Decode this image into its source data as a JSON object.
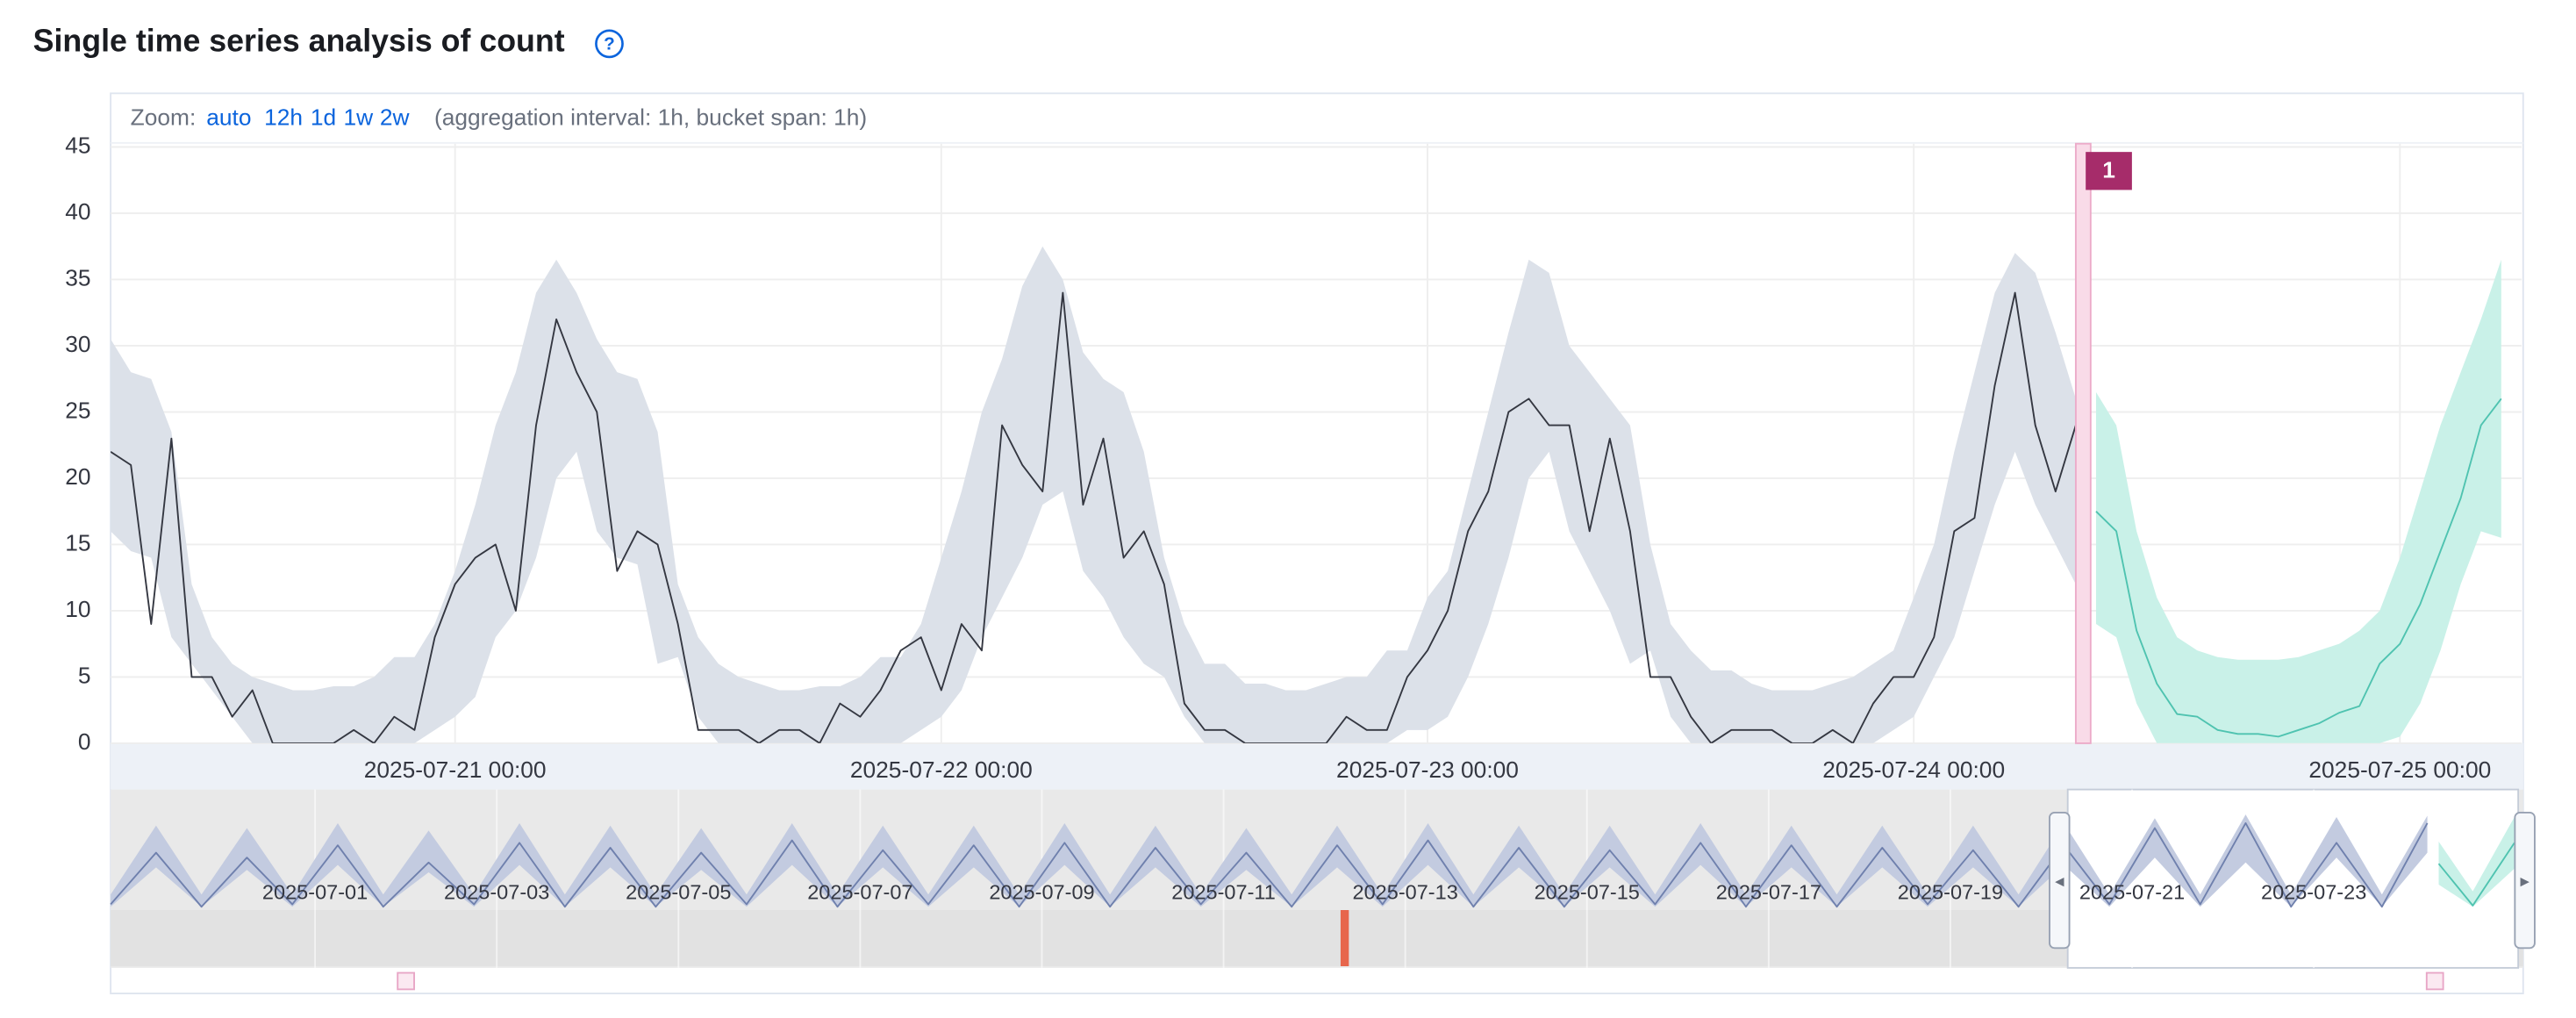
{
  "header": {
    "title": "Single time series analysis of count",
    "help": "?"
  },
  "zoom": {
    "label": "Zoom:",
    "options": [
      "auto",
      "12h",
      "1d",
      "1w",
      "2w"
    ],
    "info": "(aggregation interval: 1h, bucket span: 1h)"
  },
  "chart_data": [
    {
      "type": "line",
      "xlim": [
        "2025-07-20 07:00",
        "2025-07-25 06:00"
      ],
      "xticks": [
        "2025-07-21 00:00",
        "2025-07-22 00:00",
        "2025-07-23 00:00",
        "2025-07-24 00:00",
        "2025-07-25 00:00"
      ],
      "ylim": [
        0,
        45
      ],
      "yticks": [
        0,
        5,
        10,
        15,
        20,
        25,
        30,
        35,
        40,
        45
      ],
      "grid": true,
      "series": [
        {
          "color": "#343741",
          "band_color": "#dce1e9",
          "x": [
            "2025-07-20 07:00",
            "2025-07-20 08:00",
            "2025-07-20 09:00",
            "2025-07-20 10:00",
            "2025-07-20 11:00",
            "2025-07-20 12:00",
            "2025-07-20 13:00",
            "2025-07-20 14:00",
            "2025-07-20 15:00",
            "2025-07-20 16:00",
            "2025-07-20 17:00",
            "2025-07-20 18:00",
            "2025-07-20 19:00",
            "2025-07-20 20:00",
            "2025-07-20 21:00",
            "2025-07-20 22:00",
            "2025-07-20 23:00",
            "2025-07-21 00:00",
            "2025-07-21 01:00",
            "2025-07-21 02:00",
            "2025-07-21 03:00",
            "2025-07-21 04:00",
            "2025-07-21 05:00",
            "2025-07-21 06:00",
            "2025-07-21 07:00",
            "2025-07-21 08:00",
            "2025-07-21 09:00",
            "2025-07-21 10:00",
            "2025-07-21 11:00",
            "2025-07-21 12:00",
            "2025-07-21 13:00",
            "2025-07-21 14:00",
            "2025-07-21 15:00",
            "2025-07-21 16:00",
            "2025-07-21 17:00",
            "2025-07-21 18:00",
            "2025-07-21 19:00",
            "2025-07-21 20:00",
            "2025-07-21 21:00",
            "2025-07-21 22:00",
            "2025-07-21 23:00",
            "2025-07-22 00:00",
            "2025-07-22 01:00",
            "2025-07-22 02:00",
            "2025-07-22 03:00",
            "2025-07-22 04:00",
            "2025-07-22 05:00",
            "2025-07-22 06:00",
            "2025-07-22 07:00",
            "2025-07-22 08:00",
            "2025-07-22 09:00",
            "2025-07-22 10:00",
            "2025-07-22 11:00",
            "2025-07-22 12:00",
            "2025-07-22 13:00",
            "2025-07-22 14:00",
            "2025-07-22 15:00",
            "2025-07-22 16:00",
            "2025-07-22 17:00",
            "2025-07-22 18:00",
            "2025-07-22 19:00",
            "2025-07-22 20:00",
            "2025-07-22 21:00",
            "2025-07-22 22:00",
            "2025-07-22 23:00",
            "2025-07-23 00:00",
            "2025-07-23 01:00",
            "2025-07-23 02:00",
            "2025-07-23 03:00",
            "2025-07-23 04:00",
            "2025-07-23 05:00",
            "2025-07-23 06:00",
            "2025-07-23 07:00",
            "2025-07-23 08:00",
            "2025-07-23 09:00",
            "2025-07-23 10:00",
            "2025-07-23 11:00",
            "2025-07-23 12:00",
            "2025-07-23 13:00",
            "2025-07-23 14:00",
            "2025-07-23 15:00",
            "2025-07-23 16:00",
            "2025-07-23 17:00",
            "2025-07-23 18:00",
            "2025-07-23 19:00",
            "2025-07-23 20:00",
            "2025-07-23 21:00",
            "2025-07-23 22:00",
            "2025-07-23 23:00",
            "2025-07-24 00:00",
            "2025-07-24 01:00",
            "2025-07-24 02:00",
            "2025-07-24 03:00",
            "2025-07-24 04:00",
            "2025-07-24 05:00",
            "2025-07-24 06:00",
            "2025-07-24 07:00",
            "2025-07-24 08:00"
          ],
          "values": [
            22,
            21,
            9,
            23,
            5,
            5,
            2,
            4,
            0,
            0,
            0,
            0,
            1,
            0,
            2,
            1,
            8,
            12,
            14,
            15,
            10,
            24,
            32,
            28,
            25,
            13,
            16,
            15,
            9,
            1,
            1,
            1,
            0,
            1,
            1,
            0,
            3,
            2,
            4,
            7,
            8,
            4,
            9,
            7,
            24,
            21,
            19,
            34,
            18,
            23,
            14,
            16,
            12,
            3,
            1,
            1,
            0,
            0,
            0,
            0,
            0,
            2,
            1,
            1,
            5,
            7,
            10,
            16,
            19,
            25,
            26,
            24,
            24,
            16,
            23,
            16,
            5,
            5,
            2,
            0,
            1,
            1,
            1,
            0,
            0,
            1,
            0,
            3,
            5,
            5,
            8,
            16,
            17,
            27,
            34,
            24,
            19,
            24
          ],
          "upper": [
            30.5,
            28,
            27.5,
            23.5,
            12,
            8,
            6,
            5,
            4.5,
            4,
            4,
            4.3,
            4.3,
            5,
            6.5,
            6.5,
            9,
            13,
            18,
            24,
            28,
            34,
            36.5,
            34,
            30.5,
            28,
            27.5,
            23.5,
            12,
            8,
            6,
            5,
            4.5,
            4,
            4,
            4.3,
            4.3,
            5,
            6.5,
            6.5,
            9,
            14,
            19,
            25,
            29,
            34.5,
            37.5,
            35,
            29.5,
            27.5,
            26.5,
            22,
            14,
            9,
            6,
            6,
            4.5,
            4.5,
            4,
            4,
            4.5,
            5,
            5,
            7,
            7,
            11,
            13,
            19,
            25,
            31,
            36.5,
            35.5,
            30,
            28,
            26,
            24,
            15,
            9,
            7,
            5.5,
            5.5,
            4.5,
            4,
            4,
            4,
            4.5,
            5,
            6,
            7,
            11,
            15,
            22,
            28,
            34,
            37,
            35.5,
            31,
            26
          ],
          "lower": [
            16,
            14.5,
            14,
            8,
            6,
            4,
            2,
            0,
            0,
            0,
            0,
            0,
            0,
            0,
            0,
            0,
            1,
            2,
            3.5,
            8,
            10,
            14,
            20,
            22,
            16,
            14,
            13.5,
            6,
            6.5,
            2,
            0,
            0,
            0,
            0,
            0,
            0,
            0,
            0,
            0,
            0,
            1,
            2,
            4,
            8,
            11,
            14,
            18,
            19,
            13,
            11,
            8,
            6,
            5,
            2,
            0,
            0,
            0,
            0,
            0,
            0,
            0,
            0,
            0,
            0,
            1,
            1,
            2,
            5,
            9,
            14,
            20,
            22,
            16,
            13,
            10,
            6,
            7,
            2,
            0,
            0,
            0,
            0,
            0,
            0,
            0,
            0,
            0,
            0,
            1,
            2,
            5,
            8,
            13,
            18,
            22,
            18,
            15,
            12
          ]
        },
        {
          "color": "#4fc3b0",
          "band_color": "#c9f1e8",
          "x": [
            "2025-07-24 09:00",
            "2025-07-24 10:00",
            "2025-07-24 11:00",
            "2025-07-24 12:00",
            "2025-07-24 13:00",
            "2025-07-24 14:00",
            "2025-07-24 15:00",
            "2025-07-24 16:00",
            "2025-07-24 17:00",
            "2025-07-24 18:00",
            "2025-07-24 19:00",
            "2025-07-24 20:00",
            "2025-07-24 21:00",
            "2025-07-24 22:00",
            "2025-07-24 23:00",
            "2025-07-25 00:00",
            "2025-07-25 01:00",
            "2025-07-25 02:00",
            "2025-07-25 03:00",
            "2025-07-25 04:00",
            "2025-07-25 05:00"
          ],
          "values": [
            17.5,
            16,
            8.5,
            4.5,
            2.2,
            2,
            1,
            0.7,
            0.7,
            0.5,
            1,
            1.5,
            2.3,
            2.8,
            6,
            7.5,
            10.5,
            14.5,
            18.5,
            24,
            26
          ],
          "upper": [
            26.5,
            24,
            16,
            11,
            8,
            7,
            6.5,
            6.3,
            6.3,
            6.3,
            6.5,
            7,
            7.5,
            8.5,
            10,
            14,
            19,
            24,
            28,
            32,
            36.5
          ],
          "lower": [
            9,
            8,
            3,
            0,
            0,
            0,
            0,
            0,
            0,
            0,
            0,
            0,
            0,
            0,
            0,
            0.5,
            3,
            7,
            12,
            16,
            15.5
          ]
        }
      ],
      "annotations": [
        {
          "x": "2025-07-02 00:00"
        },
        {
          "x": "2025-07-24 08:00",
          "label": "1",
          "color": "#a62c6a"
        }
      ]
    },
    {
      "type": "line",
      "xlim": [
        "2025-06-28 18:00",
        "2025-07-25 06:00"
      ],
      "xticks": [
        "2025-07-01",
        "2025-07-03",
        "2025-07-05",
        "2025-07-07",
        "2025-07-09",
        "2025-07-11",
        "2025-07-13",
        "2025-07-15",
        "2025-07-17",
        "2025-07-19",
        "2025-07-21",
        "2025-07-23"
      ],
      "ylim": [
        0,
        45
      ],
      "series": [
        {
          "color": "#6f80ad",
          "band_color": "#c3cbe0",
          "x": [
            "2025-06-28 18:00",
            "2025-06-29 06:00",
            "2025-06-29 18:00",
            "2025-06-30 06:00",
            "2025-06-30 18:00",
            "2025-07-01 06:00",
            "2025-07-01 18:00",
            "2025-07-02 06:00",
            "2025-07-02 18:00",
            "2025-07-03 06:00",
            "2025-07-03 18:00",
            "2025-07-04 06:00",
            "2025-07-04 18:00",
            "2025-07-05 06:00",
            "2025-07-05 18:00",
            "2025-07-06 06:00",
            "2025-07-06 18:00",
            "2025-07-07 06:00",
            "2025-07-07 18:00",
            "2025-07-08 06:00",
            "2025-07-08 18:00",
            "2025-07-09 06:00",
            "2025-07-09 18:00",
            "2025-07-10 06:00",
            "2025-07-10 18:00",
            "2025-07-11 06:00",
            "2025-07-11 18:00",
            "2025-07-12 06:00",
            "2025-07-12 18:00",
            "2025-07-13 06:00",
            "2025-07-13 18:00",
            "2025-07-14 06:00",
            "2025-07-14 18:00",
            "2025-07-15 06:00",
            "2025-07-15 18:00",
            "2025-07-16 06:00",
            "2025-07-16 18:00",
            "2025-07-17 06:00",
            "2025-07-17 18:00",
            "2025-07-18 06:00",
            "2025-07-18 18:00",
            "2025-07-19 06:00",
            "2025-07-19 18:00",
            "2025-07-20 06:00",
            "2025-07-20 18:00",
            "2025-07-21 06:00",
            "2025-07-21 18:00",
            "2025-07-22 06:00",
            "2025-07-22 18:00",
            "2025-07-23 06:00",
            "2025-07-23 18:00",
            "2025-07-24 06:00"
          ],
          "values": [
            1,
            22,
            0,
            20,
            1,
            25,
            0,
            18,
            1,
            26,
            0,
            24,
            0,
            22,
            1,
            27,
            0,
            23,
            1,
            25,
            0,
            26,
            0,
            24,
            1,
            22,
            0,
            25,
            1,
            27,
            0,
            24,
            0,
            23,
            1,
            26,
            0,
            25,
            0,
            24,
            1,
            23,
            0,
            25,
            1,
            32,
            1,
            34,
            0,
            26,
            0,
            34
          ],
          "upper": [
            5,
            33,
            5,
            32,
            5,
            34,
            5,
            31,
            5,
            34,
            5,
            33,
            5,
            32,
            5,
            34,
            5,
            33,
            5,
            33,
            5,
            34,
            5,
            33,
            5,
            32,
            5,
            33,
            5,
            34,
            5,
            33,
            5,
            33,
            5,
            34,
            5,
            33,
            5,
            33,
            5,
            33,
            5,
            34,
            5,
            36,
            5,
            37.5,
            5,
            36.5,
            5,
            37
          ],
          "lower": [
            0,
            16,
            0,
            15,
            0,
            17,
            0,
            14,
            0,
            17,
            0,
            16,
            0,
            15,
            0,
            17,
            0,
            16,
            0,
            16,
            0,
            17,
            0,
            16,
            0,
            15,
            0,
            16,
            0,
            17,
            0,
            16,
            0,
            16,
            0,
            17,
            0,
            16,
            0,
            16,
            0,
            16,
            0,
            17,
            0,
            20,
            0,
            18,
            0,
            20,
            0,
            22
          ]
        },
        {
          "color": "#4fc3b0",
          "band_color": "#c9f1e8",
          "x": [
            "2025-07-24 09:00",
            "2025-07-24 18:00",
            "2025-07-25 05:00"
          ],
          "values": [
            17.5,
            0.5,
            26
          ],
          "upper": [
            26.5,
            6.3,
            36.5
          ],
          "lower": [
            9,
            0,
            15.5
          ]
        }
      ],
      "anomalies": [
        {
          "x": "2025-07-12 08:00",
          "color": "#e7664c"
        }
      ]
    }
  ]
}
